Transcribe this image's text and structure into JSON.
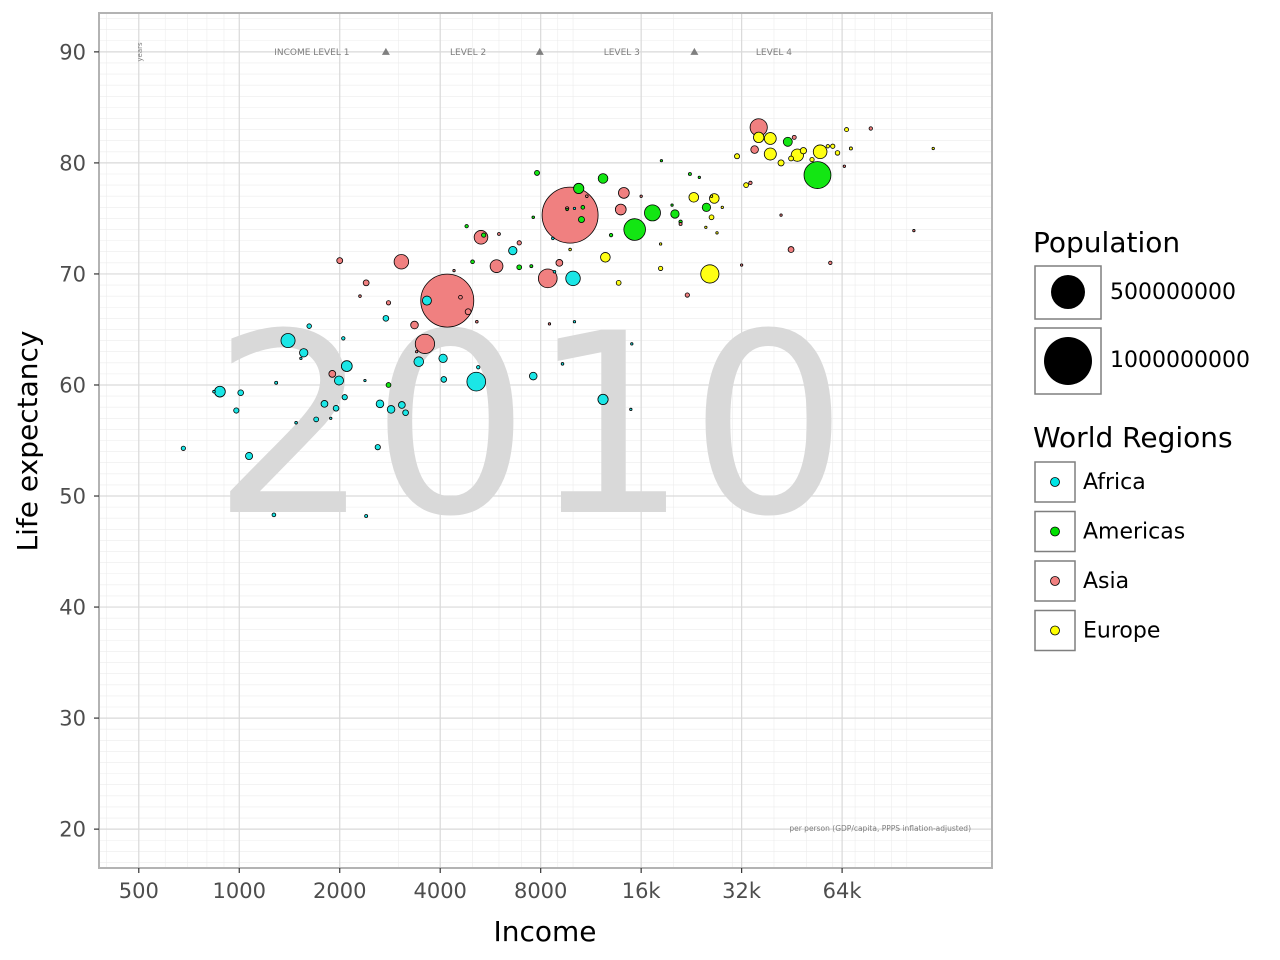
{
  "chart_data": {
    "type": "scatter",
    "subtype": "bubble",
    "year": "2010",
    "xlabel": "Income",
    "ylabel": "Life expectancy",
    "x_scale": "log2",
    "xlim": [
      380,
      180000
    ],
    "ylim": [
      16.5,
      93.5
    ],
    "x_ticks": [
      500,
      1000,
      2000,
      4000,
      8000,
      16000,
      32000,
      64000
    ],
    "x_tick_labels": [
      "500",
      "1000",
      "2000",
      "4000",
      "8000",
      "16k",
      "32k",
      "64k"
    ],
    "y_ticks": [
      20,
      30,
      40,
      50,
      60,
      70,
      80,
      90
    ],
    "y_tick_labels": [
      "20",
      "30",
      "40",
      "50",
      "60",
      "70",
      "80",
      "90"
    ],
    "grid": true,
    "y_unit_label": "years",
    "income_levels": [
      {
        "label": "INCOME LEVEL 1",
        "x": 1650
      },
      {
        "label": "LEVEL 2",
        "x": 4850
      },
      {
        "label": "LEVEL 3",
        "x": 14000
      },
      {
        "label": "LEVEL 4",
        "x": 40000
      }
    ],
    "level_markers_x": [
      2750,
      7950,
      23100
    ],
    "x_note": "per person (GDP/capita, PPPS inflation-adjusted)",
    "legend_position": "right",
    "size_legend": {
      "title": "Population",
      "entries": [
        {
          "label": "500000000",
          "value": 500000000
        },
        {
          "label": "1000000000",
          "value": 1000000000
        }
      ]
    },
    "color_legend": {
      "title": "World Regions",
      "entries": [
        {
          "label": "Africa",
          "color": "#00e5e5"
        },
        {
          "label": "Americas",
          "color": "#00e000"
        },
        {
          "label": "Asia",
          "color": "#f08080"
        },
        {
          "label": "Europe",
          "color": "#ffff00"
        }
      ]
    },
    "region_colors": {
      "africa": "#1be6e6",
      "americas": "#13e613",
      "asia": "#f08080",
      "europe": "#ffff13"
    },
    "series": [
      {
        "region": "africa",
        "points": [
          [
            680,
            54.3,
            8000000
          ],
          [
            840,
            59.4,
            3000000
          ],
          [
            875,
            59.4,
            50000000
          ],
          [
            980,
            57.7,
            12000000
          ],
          [
            1010,
            59.3,
            14000000
          ],
          [
            1070,
            53.6,
            22000000
          ],
          [
            1270,
            48.3,
            6000000
          ],
          [
            1290,
            60.2,
            4000000
          ],
          [
            1400,
            64.0,
            85000000
          ],
          [
            1480,
            56.6,
            3000000
          ],
          [
            1530,
            62.4,
            2000000
          ],
          [
            1560,
            62.9,
            30000000
          ],
          [
            1620,
            65.3,
            9000000
          ],
          [
            1700,
            56.9,
            10000000
          ],
          [
            1800,
            58.3,
            20000000
          ],
          [
            1880,
            57.0,
            1500000
          ],
          [
            1950,
            57.9,
            14000000
          ],
          [
            1990,
            60.4,
            35000000
          ],
          [
            2050,
            64.2,
            5000000
          ],
          [
            2070,
            58.9,
            12000000
          ],
          [
            2100,
            61.7,
            50000000
          ],
          [
            2380,
            60.4,
            2000000
          ],
          [
            2400,
            48.2,
            4000000
          ],
          [
            2600,
            54.4,
            12000000
          ],
          [
            2640,
            58.3,
            25000000
          ],
          [
            2750,
            66.0,
            14000000
          ],
          [
            2850,
            57.8,
            25000000
          ],
          [
            3070,
            58.2,
            20000000
          ],
          [
            3150,
            57.5,
            14000000
          ],
          [
            3450,
            62.1,
            40000000
          ],
          [
            3650,
            67.6,
            35000000
          ],
          [
            4080,
            62.4,
            30000000
          ],
          [
            4100,
            60.5,
            14000000
          ],
          [
            5130,
            60.3,
            150000000
          ],
          [
            5200,
            61.6,
            5000000
          ],
          [
            6600,
            72.1,
            30000000
          ],
          [
            7600,
            60.8,
            25000000
          ],
          [
            8700,
            73.2,
            3000000
          ],
          [
            8800,
            70.2,
            3000000
          ],
          [
            10000,
            69.6,
            90000000
          ],
          [
            9300,
            61.9,
            3000000
          ],
          [
            10100,
            75.9,
            2000000
          ],
          [
            10100,
            65.7,
            2000000
          ],
          [
            12300,
            58.7,
            45000000
          ],
          [
            14900,
            57.8,
            2000000
          ],
          [
            15000,
            63.7,
            2000000
          ]
        ]
      },
      {
        "region": "americas",
        "points": [
          [
            2800,
            60.0,
            10000000
          ],
          [
            4800,
            74.3,
            5000000
          ],
          [
            5000,
            71.1,
            6000000
          ],
          [
            5400,
            73.5,
            8000000
          ],
          [
            6900,
            70.6,
            10000000
          ],
          [
            7500,
            70.7,
            4000000
          ],
          [
            7600,
            75.1,
            3000000
          ],
          [
            7800,
            79.1,
            11000000
          ],
          [
            9600,
            75.8,
            2000000
          ],
          [
            10400,
            77.7,
            45000000
          ],
          [
            10700,
            76.0,
            6000000
          ],
          [
            10600,
            74.9,
            16000000
          ],
          [
            12300,
            78.6,
            40000000
          ],
          [
            13000,
            73.5,
            5000000
          ],
          [
            15300,
            74.0,
            200000000
          ],
          [
            17300,
            75.5,
            110000000
          ],
          [
            19800,
            76.2,
            1000000
          ],
          [
            20200,
            75.4,
            30000000
          ],
          [
            21000,
            74.7,
            5000000
          ],
          [
            22400,
            79.0,
            4000000
          ],
          [
            23900,
            78.7,
            2000000
          ],
          [
            18400,
            80.2,
            1000000
          ],
          [
            25100,
            76.0,
            30000000
          ],
          [
            44000,
            81.9,
            35000000
          ],
          [
            54000,
            78.9,
            310000000
          ]
        ]
      },
      {
        "region": "asia",
        "points": [
          [
            1900,
            61.0,
            20000000
          ],
          [
            2000,
            71.2,
            15000000
          ],
          [
            2300,
            68.0,
            3000000
          ],
          [
            2400,
            69.2,
            15000000
          ],
          [
            2800,
            67.4,
            8000000
          ],
          [
            3060,
            71.1,
            90000000
          ],
          [
            3350,
            65.4,
            25000000
          ],
          [
            3400,
            63.0,
            2000000
          ],
          [
            3600,
            63.7,
            160000000
          ],
          [
            4200,
            67.6,
            1200000000
          ],
          [
            4400,
            70.3,
            2500000
          ],
          [
            4600,
            67.9,
            6000000
          ],
          [
            4850,
            66.6,
            15000000
          ],
          [
            5150,
            65.7,
            3000000
          ],
          [
            5300,
            73.3,
            80000000
          ],
          [
            5900,
            70.7,
            70000000
          ],
          [
            6000,
            73.6,
            3500000
          ],
          [
            6900,
            72.8,
            8000000
          ],
          [
            8400,
            69.6,
            150000000
          ],
          [
            8500,
            65.5,
            2500000
          ],
          [
            9100,
            71.0,
            20000000
          ],
          [
            9800,
            75.3,
            1340000000
          ],
          [
            9600,
            75.9,
            5000000
          ],
          [
            11000,
            77.0,
            3000000
          ],
          [
            13900,
            75.8,
            50000000
          ],
          [
            14200,
            77.3,
            50000000
          ],
          [
            16000,
            77.0,
            2000000
          ],
          [
            21000,
            74.5,
            4000000
          ],
          [
            22000,
            68.1,
            8000000
          ],
          [
            32000,
            70.8,
            2000000
          ],
          [
            34000,
            78.2,
            5000000
          ],
          [
            35000,
            81.2,
            25000000
          ],
          [
            36000,
            83.2,
            127000000
          ],
          [
            42000,
            75.3,
            1500000
          ],
          [
            45000,
            72.2,
            15000000
          ],
          [
            46000,
            82.3,
            7000000
          ],
          [
            59000,
            71.0,
            5000000
          ],
          [
            65000,
            79.7,
            2000000
          ],
          [
            78000,
            83.1,
            5000000
          ],
          [
            105000,
            73.9,
            1500000
          ]
        ]
      },
      {
        "region": "europe",
        "points": [
          [
            9800,
            72.2,
            3000000
          ],
          [
            12500,
            71.5,
            40000000
          ],
          [
            13700,
            69.2,
            10000000
          ],
          [
            18300,
            72.7,
            2000000
          ],
          [
            18300,
            70.5,
            8000000
          ],
          [
            23000,
            76.9,
            40000000
          ],
          [
            25000,
            74.2,
            1000000
          ],
          [
            26000,
            75.1,
            10000000
          ],
          [
            26500,
            76.8,
            40000000
          ],
          [
            27000,
            73.7,
            2000000
          ],
          [
            25700,
            70.0,
            142000000
          ],
          [
            26000,
            77.0,
            2000000
          ],
          [
            28000,
            76.0,
            2000000
          ],
          [
            31000,
            80.6,
            11000000
          ],
          [
            33000,
            78.0,
            10000000
          ],
          [
            36000,
            82.3,
            47000000
          ],
          [
            39000,
            80.8,
            62000000
          ],
          [
            39000,
            82.2,
            60000000
          ],
          [
            42000,
            80.0,
            16000000
          ],
          [
            45000,
            80.4,
            10000000
          ],
          [
            47000,
            80.7,
            65000000
          ],
          [
            49000,
            81.1,
            17000000
          ],
          [
            52000,
            80.3,
            8000000
          ],
          [
            55000,
            81.0,
            80000000
          ],
          [
            58000,
            81.5,
            5000000
          ],
          [
            60000,
            81.5,
            8000000
          ],
          [
            62000,
            80.9,
            9000000
          ],
          [
            66000,
            83.0,
            7000000
          ],
          [
            68000,
            81.3,
            4000000
          ],
          [
            120000,
            81.3,
            500000
          ]
        ]
      }
    ]
  }
}
